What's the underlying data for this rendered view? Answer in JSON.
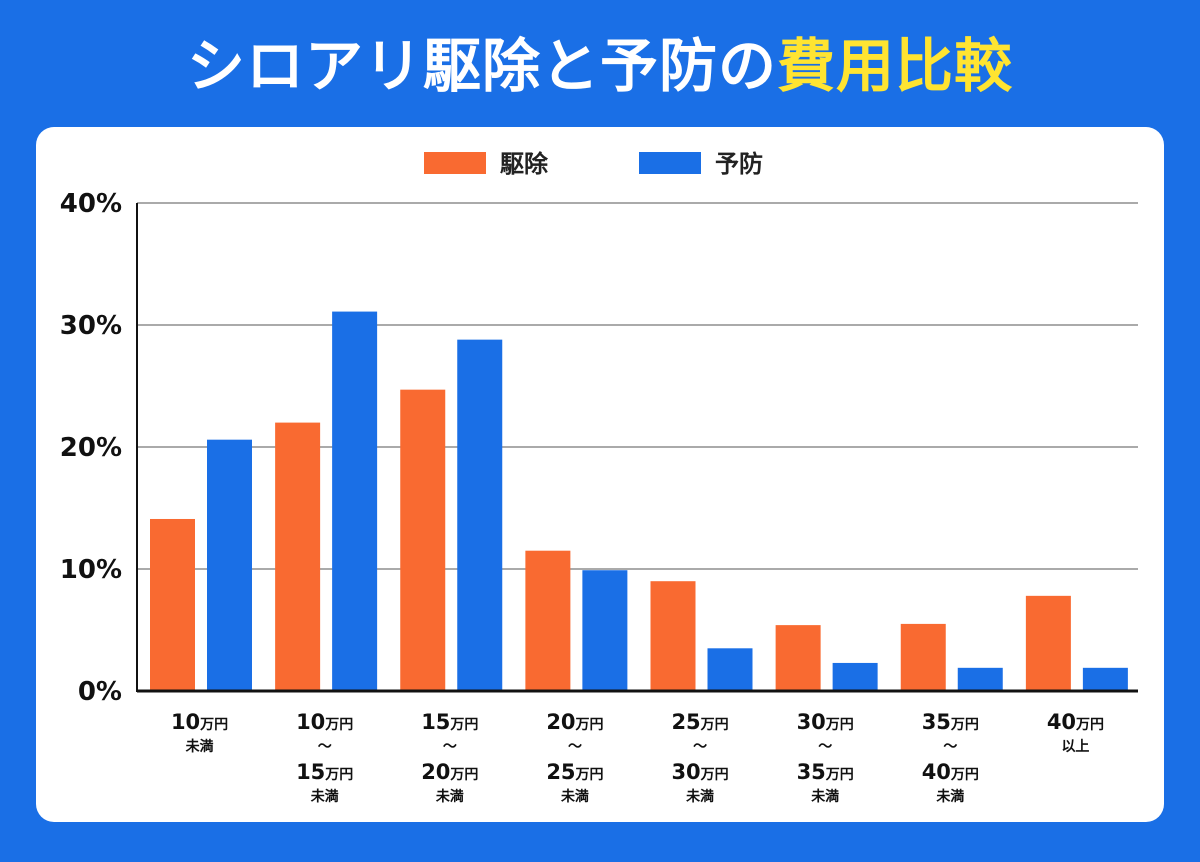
{
  "header": {
    "title_main": "シロアリ駆除と予防の",
    "title_highlight": "費用比較"
  },
  "colors": {
    "background": "#1a6fe6",
    "highlight": "#ffe431",
    "series_1": "#f96a31",
    "series_2": "#1a6fe6"
  },
  "chart_data": {
    "type": "bar",
    "ylim": [
      0,
      40
    ],
    "yticks": [
      "0%",
      "10%",
      "20%",
      "30%",
      "40%"
    ],
    "grid": true,
    "legend_position": "top-center",
    "categories": [
      {
        "lines": [
          {
            "num": "10",
            "unit": "万円"
          }
        ],
        "suffix": "未満"
      },
      {
        "lines": [
          {
            "num": "10",
            "unit": "万円"
          },
          {
            "num": "15",
            "unit": "万円"
          }
        ],
        "suffix": "未満"
      },
      {
        "lines": [
          {
            "num": "15",
            "unit": "万円"
          },
          {
            "num": "20",
            "unit": "万円"
          }
        ],
        "suffix": "未満"
      },
      {
        "lines": [
          {
            "num": "20",
            "unit": "万円"
          },
          {
            "num": "25",
            "unit": "万円"
          }
        ],
        "suffix": "未満"
      },
      {
        "lines": [
          {
            "num": "25",
            "unit": "万円"
          },
          {
            "num": "30",
            "unit": "万円"
          }
        ],
        "suffix": "未満"
      },
      {
        "lines": [
          {
            "num": "30",
            "unit": "万円"
          },
          {
            "num": "35",
            "unit": "万円"
          }
        ],
        "suffix": "未満"
      },
      {
        "lines": [
          {
            "num": "35",
            "unit": "万円"
          },
          {
            "num": "40",
            "unit": "万円"
          }
        ],
        "suffix": "未満"
      },
      {
        "lines": [
          {
            "num": "40",
            "unit": "万円"
          }
        ],
        "suffix": "以上"
      }
    ],
    "range_separator": "〜",
    "series": [
      {
        "name": "駆除",
        "color": "#f96a31",
        "values": [
          14.1,
          22.0,
          24.7,
          11.5,
          9.0,
          5.4,
          5.5,
          7.8
        ]
      },
      {
        "name": "予防",
        "color": "#1a6fe6",
        "values": [
          20.6,
          31.1,
          28.8,
          9.9,
          3.5,
          2.3,
          1.9,
          1.9
        ]
      }
    ]
  }
}
